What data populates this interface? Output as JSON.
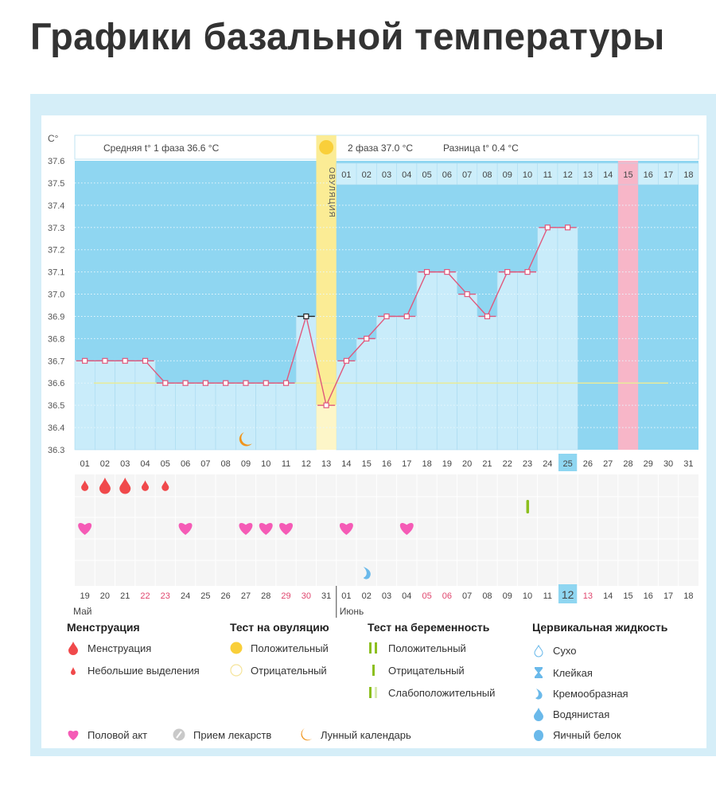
{
  "page": {
    "title": "Графики базальной температуры"
  },
  "chart_data": {
    "type": "line",
    "y_unit": "C°",
    "ylim": [
      36.3,
      37.6
    ],
    "yticks": [
      "37.6",
      "37.5",
      "37.4",
      "37.3",
      "37.2",
      "37.1",
      "37.0",
      "36.9",
      "36.8",
      "36.7",
      "36.6",
      "36.5",
      "36.4",
      "36.3"
    ],
    "grid": true,
    "cycle_days": [
      "01",
      "02",
      "03",
      "04",
      "05",
      "06",
      "07",
      "08",
      "09",
      "10",
      "11",
      "12",
      "13",
      "14",
      "15",
      "16",
      "17",
      "18",
      "19",
      "20",
      "21",
      "22",
      "23",
      "24",
      "25",
      "26",
      "27",
      "28",
      "29",
      "30",
      "31"
    ],
    "temperatures": [
      36.7,
      36.7,
      36.7,
      36.7,
      36.6,
      36.6,
      36.6,
      36.6,
      36.6,
      36.6,
      36.6,
      36.9,
      36.5,
      36.7,
      36.8,
      36.9,
      36.9,
      37.1,
      37.1,
      37.0,
      36.9,
      37.1,
      37.1,
      37.3,
      37.3,
      null,
      null,
      null,
      null,
      null,
      null
    ],
    "coverline": 36.6,
    "current_cycle_day": "25",
    "ovulation_cycle_day": 13,
    "ovulation_label": "ОВУЛЯЦИЯ",
    "highlighted_cycle_day": 28,
    "header": {
      "phase1": "Средняя t° 1 фаза 36.6 °C",
      "phase2": "2 фаза 37.0 °C",
      "difference": "Разница t° 0.4 °C"
    },
    "phase2_days": [
      "01",
      "02",
      "03",
      "04",
      "05",
      "06",
      "07",
      "08",
      "09",
      "10",
      "11",
      "12",
      "13",
      "14",
      "15",
      "16",
      "17",
      "18"
    ],
    "calendar_dates": [
      "19",
      "20",
      "21",
      "22",
      "23",
      "24",
      "25",
      "26",
      "27",
      "28",
      "29",
      "30",
      "31",
      "01",
      "02",
      "03",
      "04",
      "05",
      "06",
      "07",
      "08",
      "09",
      "10",
      "11",
      "12",
      "13",
      "14",
      "15",
      "16",
      "17",
      "18"
    ],
    "weekend_dates_index": [
      3,
      4,
      10,
      11,
      17,
      18,
      25
    ],
    "today_date_index": 24,
    "months": [
      "Май",
      "Июнь"
    ],
    "markers": {
      "menstruation": [
        {
          "day": 1,
          "type": "light"
        },
        {
          "day": 2,
          "type": "heavy"
        },
        {
          "day": 3,
          "type": "heavy"
        },
        {
          "day": 4,
          "type": "light"
        },
        {
          "day": 5,
          "type": "light"
        }
      ],
      "pregnancy_test": [
        {
          "day": 23,
          "type": "negative"
        }
      ],
      "intercourse": [
        1,
        6,
        9,
        10,
        11,
        14,
        17
      ],
      "cervical_fluid": [
        {
          "day": 15,
          "type": "creamy"
        }
      ],
      "moon": [
        9
      ]
    },
    "colors": {
      "bg_dark": "#8fd6f1",
      "bar": "#c9ecfa",
      "line": "#e0587c",
      "ovulation": "#fbec95",
      "highlight": "#f7b6c8",
      "coverline": "#e8eb9a",
      "weekend": "#e0466e",
      "menstruation": "#f0494b",
      "heart": "#f55bb6",
      "test": "#8cbf1e",
      "cervical": "#6ab9ea",
      "moon": "#f0941c"
    }
  },
  "legend": {
    "menstruation": {
      "title": "Менструация",
      "items": [
        "Менструация",
        "Небольшие выделения"
      ]
    },
    "ovulation_test": {
      "title": "Тест на овуляцию",
      "items": [
        "Положительный",
        "Отрицательный"
      ]
    },
    "pregnancy_test": {
      "title": "Тест на беременность",
      "items": [
        "Положительный",
        "Отрицательный",
        "Слабоположительный"
      ]
    },
    "cervical": {
      "title": "Цервикальная жидкость",
      "items": [
        "Сухо",
        "Клейкая",
        "Кремообразная",
        "Водянистая",
        "Яичный белок"
      ]
    },
    "other": [
      "Половой акт",
      "Прием лекарств",
      "Лунный календарь"
    ]
  }
}
